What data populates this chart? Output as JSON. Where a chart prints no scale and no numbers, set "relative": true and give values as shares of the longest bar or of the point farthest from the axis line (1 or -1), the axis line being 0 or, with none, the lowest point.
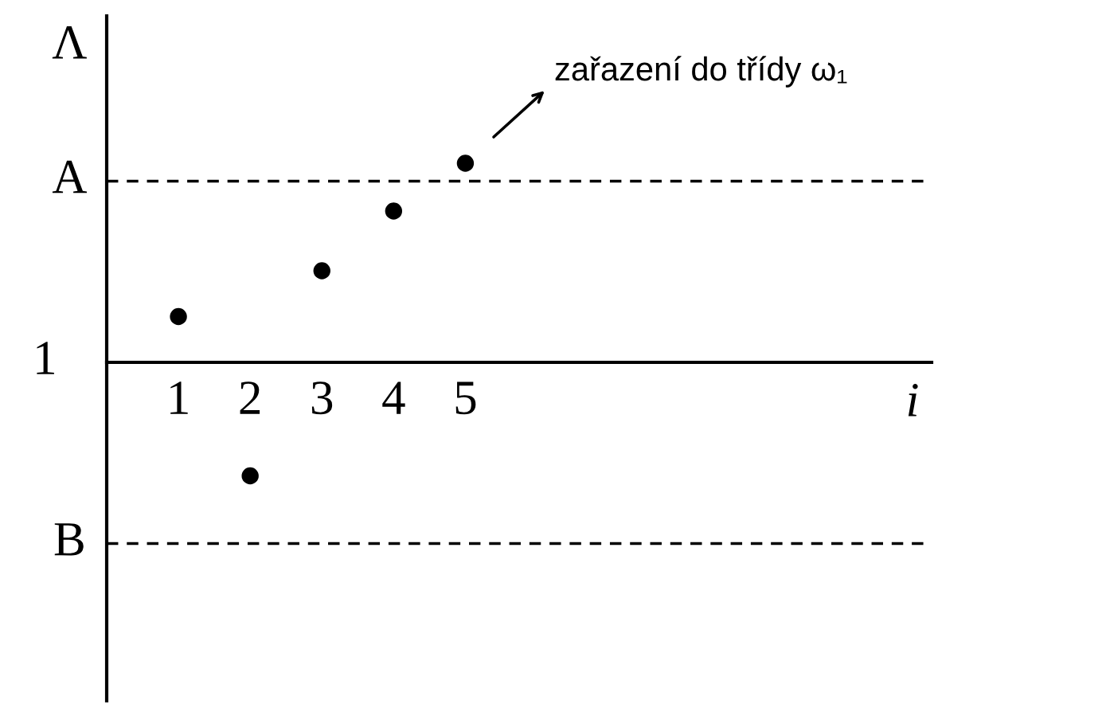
{
  "chart_data": {
    "type": "scatter",
    "xlabel": "i",
    "ylabel": "Λ",
    "relative": true,
    "x": [
      1,
      2,
      3,
      4,
      5
    ],
    "values": [
      0.23,
      -0.57,
      0.46,
      0.76,
      1
    ],
    "color": "#000000",
    "marker": "circle",
    "xlim": [
      0,
      11.5
    ],
    "xticks": [
      1,
      2,
      3,
      4,
      5
    ],
    "ref_lines": [
      {
        "axis": "y",
        "value": 0.91,
        "label": "A",
        "line_style": "dashed"
      },
      {
        "axis": "y",
        "value": -0.91,
        "label": "B",
        "line_style": "dashed"
      }
    ],
    "annotations": [
      "1",
      "zařazení do třídy ω₁"
    ]
  }
}
